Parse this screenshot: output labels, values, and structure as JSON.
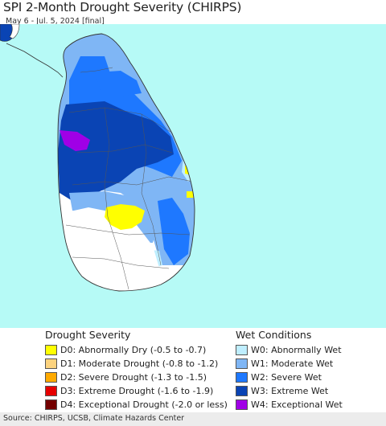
{
  "header": {
    "title": "SPI 2-Month Drought Severity (CHIRPS)",
    "subtitle": "May 6 - Jul. 5, 2024 [final]"
  },
  "colors": {
    "ocean": "#b6faf6",
    "land_base": "#ffffff",
    "D0": "#ffff00",
    "D1": "#fcd37f",
    "D2": "#ffaa00",
    "D3": "#e60000",
    "D4": "#730000",
    "W0": "#bfeeff",
    "W1": "#7fb6f5",
    "W2": "#1e78ff",
    "W3": "#0a44b4",
    "W4": "#a000e6"
  },
  "legend": {
    "drought": {
      "title": "Drought Severity",
      "items": [
        {
          "label": "D0: Abnormally Dry (-0.5 to -0.7)",
          "color": "#ffff00"
        },
        {
          "label": "D1: Moderate Drought (-0.8 to -1.2)",
          "color": "#fcd37f"
        },
        {
          "label": "D2: Severe Drought (-1.3 to -1.5)",
          "color": "#ffaa00"
        },
        {
          "label": "D3: Extreme Drought (-1.6 to -1.9)",
          "color": "#e60000"
        },
        {
          "label": "D4: Exceptional Drought (-2.0 or less)",
          "color": "#730000"
        }
      ]
    },
    "wet": {
      "title": "Wet Conditions",
      "items": [
        {
          "label": "W0: Abnormally Wet",
          "color": "#bfeeff"
        },
        {
          "label": "W1: Moderate Wet",
          "color": "#7fb6f5"
        },
        {
          "label": "W2: Severe Wet",
          "color": "#1e78ff"
        },
        {
          "label": "W3: Extreme Wet",
          "color": "#0a44b4"
        },
        {
          "label": "W4: Exceptional Wet",
          "color": "#a000e6"
        }
      ]
    }
  },
  "footer": {
    "source": "Source: CHIRPS, UCSB, Climate Hazards Center"
  }
}
